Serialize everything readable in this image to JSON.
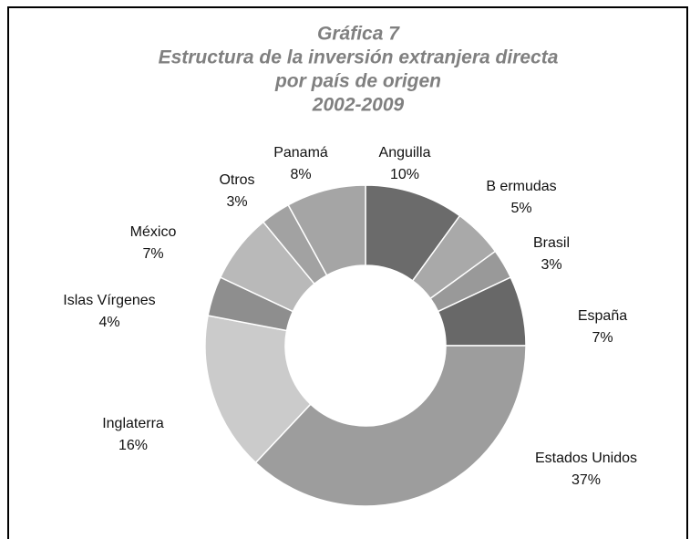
{
  "chart_data": {
    "type": "donut",
    "title": [
      "Gráfica 7",
      "Estructura de la inversión extranjera directa",
      "por país de origen",
      "2002-2009"
    ],
    "categories": [
      "Anguilla",
      "B ermudas",
      "Brasil",
      "España",
      "Estados Unidos",
      "Inglaterra",
      "Islas Vírgenes",
      "México",
      "Otros",
      "Panamá"
    ],
    "values": [
      10,
      5,
      3,
      7,
      37,
      16,
      4,
      7,
      3,
      8
    ],
    "value_labels": [
      "10%",
      "5%",
      "3%",
      "7%",
      "37%",
      "16%",
      "4%",
      "7%",
      "3%",
      "8%"
    ],
    "colors": [
      "#6b6b6b",
      "#a9a9a9",
      "#999999",
      "#686868",
      "#9d9d9d",
      "#cbcbcb",
      "#8e8e8e",
      "#b9b9b9",
      "#a2a2a2",
      "#a5a5a5"
    ]
  }
}
